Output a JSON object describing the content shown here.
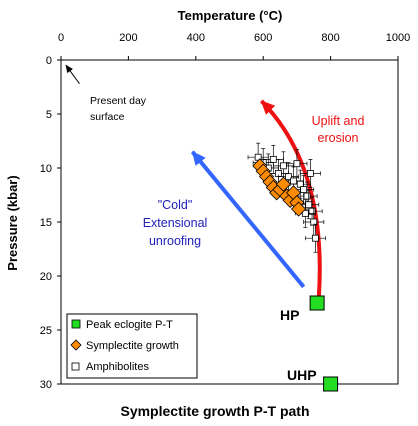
{
  "chart_data": {
    "type": "scatter",
    "title": "Symplectite growth P-T path",
    "xlabel": "Temperature (°C)",
    "ylabel": "Pressure (kbar)",
    "xlim": [
      0,
      1000
    ],
    "ylim": [
      0,
      30
    ],
    "y_inverted": true,
    "x_axis_position": "top",
    "grid": false,
    "legend_position": "bottom-left",
    "x_ticks": [
      0,
      200,
      400,
      600,
      800,
      1000
    ],
    "y_ticks": [
      0,
      5,
      10,
      15,
      20,
      25,
      30
    ],
    "series": [
      {
        "name": "Peak eclogite P-T",
        "marker": "square",
        "color": "#22dd22",
        "points": [
          {
            "x": 760,
            "y": 22.5
          },
          {
            "x": 800,
            "y": 30
          }
        ]
      },
      {
        "name": "Symplectite growth",
        "marker": "diamond",
        "color": "#ff8c00",
        "points": [
          {
            "x": 590,
            "y": 9.8
          },
          {
            "x": 600,
            "y": 10.3
          },
          {
            "x": 610,
            "y": 10.8
          },
          {
            "x": 620,
            "y": 11.3
          },
          {
            "x": 630,
            "y": 11.8
          },
          {
            "x": 640,
            "y": 12.3
          },
          {
            "x": 650,
            "y": 12.0
          },
          {
            "x": 660,
            "y": 11.5
          },
          {
            "x": 670,
            "y": 12.6
          },
          {
            "x": 680,
            "y": 13.0
          },
          {
            "x": 690,
            "y": 12.3
          },
          {
            "x": 700,
            "y": 13.2
          },
          {
            "x": 705,
            "y": 13.8
          }
        ]
      },
      {
        "name": "Amphibolites",
        "marker": "open-square",
        "color": "#000000",
        "x_error": 30,
        "y_error": 1.3,
        "points": [
          {
            "x": 585,
            "y": 9.0
          },
          {
            "x": 600,
            "y": 9.5
          },
          {
            "x": 615,
            "y": 10.0
          },
          {
            "x": 630,
            "y": 9.2
          },
          {
            "x": 645,
            "y": 10.5
          },
          {
            "x": 660,
            "y": 9.8
          },
          {
            "x": 675,
            "y": 10.8
          },
          {
            "x": 690,
            "y": 11.2
          },
          {
            "x": 700,
            "y": 9.6
          },
          {
            "x": 710,
            "y": 11.5
          },
          {
            "x": 720,
            "y": 12.0
          },
          {
            "x": 730,
            "y": 12.6
          },
          {
            "x": 735,
            "y": 13.4
          },
          {
            "x": 745,
            "y": 14.0
          },
          {
            "x": 750,
            "y": 15.0
          },
          {
            "x": 740,
            "y": 10.5
          },
          {
            "x": 725,
            "y": 14.2
          },
          {
            "x": 755,
            "y": 16.5
          }
        ]
      }
    ],
    "arrows": [
      {
        "name": "present-day",
        "color": "#000000",
        "from": [
          55,
          2.2
        ],
        "to": [
          15,
          0.5
        ]
      },
      {
        "name": "cold-path",
        "color": "#3366ff",
        "from": [
          720,
          21
        ],
        "to": [
          390,
          8.5
        ]
      },
      {
        "name": "uplift-path",
        "color": "#ee1111",
        "curve": [
          [
            765,
            22
          ],
          [
            790,
            10
          ],
          [
            595,
            3.8
          ]
        ]
      }
    ],
    "annotations": {
      "present_day": [
        "Present day",
        "surface"
      ],
      "uplift": [
        "Uplift and",
        "erosion"
      ],
      "cold": [
        "\"Cold\"",
        "Extensional",
        "unroofing"
      ],
      "hp": "HP",
      "uhp": "UHP"
    }
  }
}
